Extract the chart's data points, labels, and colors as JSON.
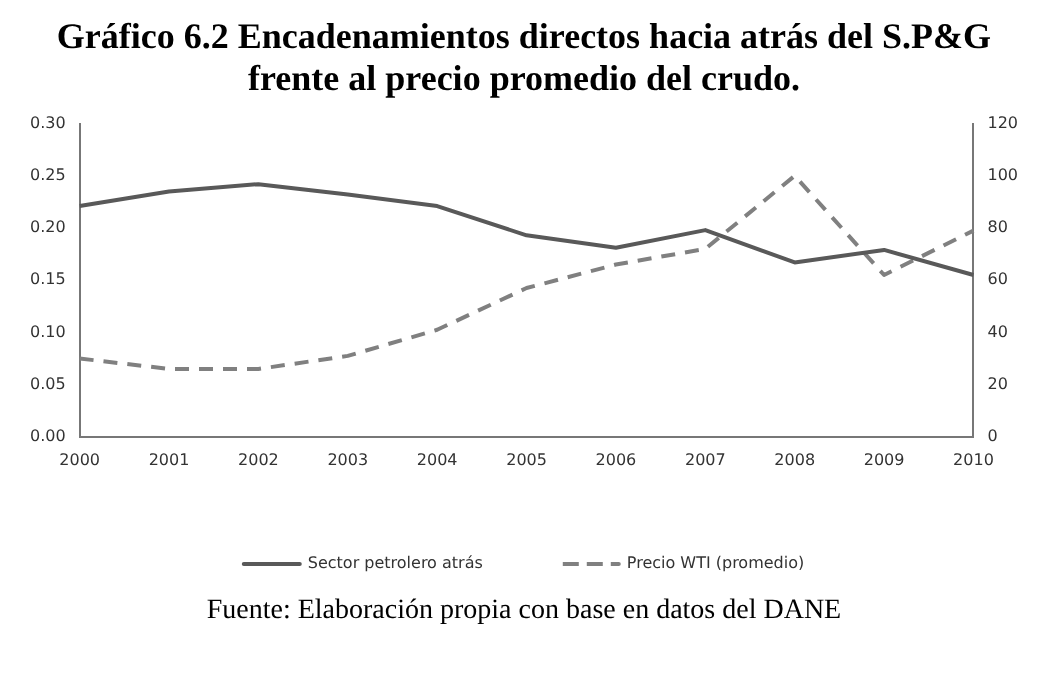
{
  "chart_data": {
    "type": "line",
    "title": "Gráfico 6.2 Encadenamientos directos hacia atrás del S.P&G frente al precio promedio del crudo.",
    "annotations": [
      "Fuente: Elaboración propia con base en datos del DANE"
    ],
    "categories": [
      "2000",
      "2001",
      "2002",
      "2003",
      "2004",
      "2005",
      "2006",
      "2007",
      "2008",
      "2009",
      "2010"
    ],
    "series": [
      {
        "name": "Sector petrolero atrás",
        "color": "#595959",
        "line_style": "solid",
        "values": [
          0.221,
          0.235,
          0.242,
          0.232,
          0.221,
          0.193,
          0.181,
          0.198,
          0.167,
          0.179,
          0.155
        ]
      },
      {
        "name": "Precio WTI (promedio)",
        "color": "#808080",
        "line_style": "dashed",
        "axis": "y2",
        "values": [
          30,
          26,
          26,
          31,
          41,
          57,
          66,
          72,
          100,
          62,
          79
        ]
      }
    ],
    "ylim": [
      0,
      0.3
    ],
    "yticks": [
      {
        "value": 0,
        "label": "0.00"
      },
      {
        "value": 0.05,
        "label": "0.05"
      },
      {
        "value": 0.1,
        "label": "0.10"
      },
      {
        "value": 0.15,
        "label": "0.15"
      },
      {
        "value": 0.2,
        "label": "0.20"
      },
      {
        "value": 0.25,
        "label": "0.25"
      },
      {
        "value": 0.3,
        "label": "0.30"
      }
    ],
    "y2lim": [
      0,
      120
    ],
    "y2ticks": [
      0,
      20,
      40,
      60,
      80,
      100,
      120
    ],
    "grid": false,
    "legend": "bottom",
    "marker": "none"
  }
}
